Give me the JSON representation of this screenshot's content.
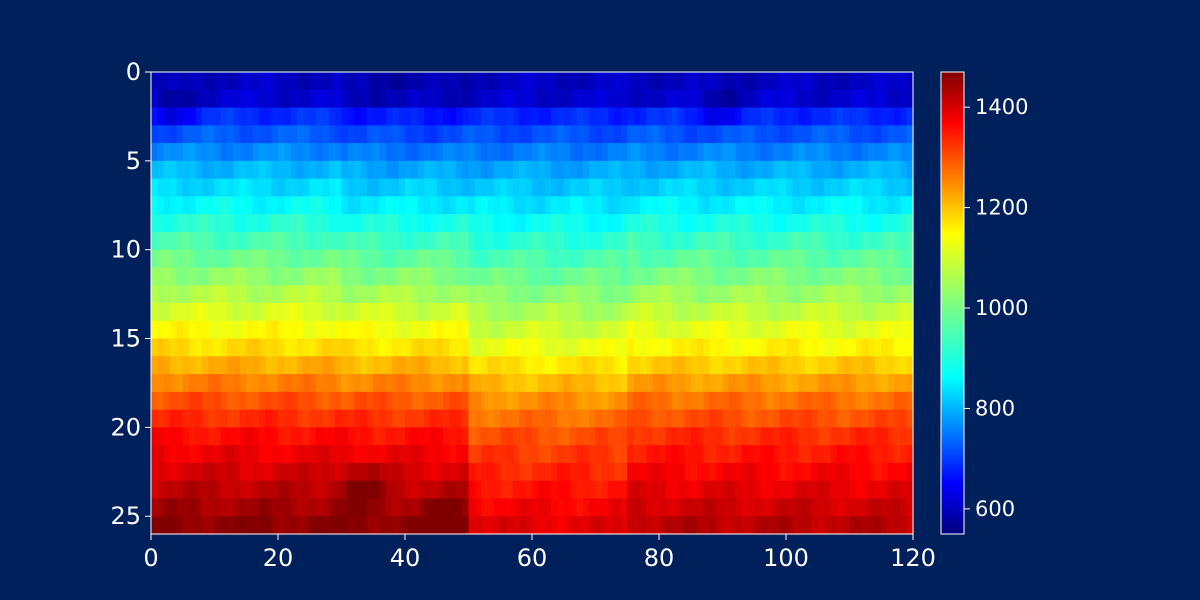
{
  "chart_data": {
    "type": "heatmap",
    "title": "",
    "xlabel": "",
    "ylabel": "",
    "x_range": [
      0,
      120
    ],
    "y_range": [
      0,
      26
    ],
    "y_inverted": true,
    "grid": false,
    "colormap": "jet",
    "value_range": [
      550,
      1470
    ],
    "x_ticks": [
      0,
      20,
      40,
      60,
      80,
      100,
      120
    ],
    "y_ticks": [
      0,
      5,
      10,
      15,
      20,
      25
    ],
    "colorbar_ticks": [
      600,
      800,
      1000,
      1200,
      1400
    ],
    "colorbar_position": "right",
    "n_columns": 120,
    "n_rows": 26,
    "row_base_values": [
      610,
      620,
      700,
      740,
      780,
      820,
      850,
      880,
      910,
      940,
      970,
      1000,
      1030,
      1060,
      1090,
      1120,
      1160,
      1200,
      1240,
      1270,
      1300,
      1320,
      1340,
      1360,
      1380,
      1400
    ],
    "zones": [
      {
        "x_start": 0,
        "x_end": 30,
        "offset_top": 0,
        "offset_bottom": 60
      },
      {
        "x_start": 30,
        "x_end": 50,
        "offset_top": -20,
        "offset_bottom": 60
      },
      {
        "x_start": 50,
        "x_end": 75,
        "offset_top": 0,
        "offset_bottom": -20
      },
      {
        "x_start": 75,
        "x_end": 120,
        "offset_top": 0,
        "offset_bottom": 20
      }
    ],
    "hotspots": [
      {
        "x": 47,
        "y": 25.5,
        "value": 1470
      },
      {
        "x": 33,
        "y": 23.5,
        "value": 1440
      },
      {
        "x": 3,
        "y": 1.5,
        "value": 560
      },
      {
        "x": 90,
        "y": 1.5,
        "value": 580
      }
    ]
  }
}
